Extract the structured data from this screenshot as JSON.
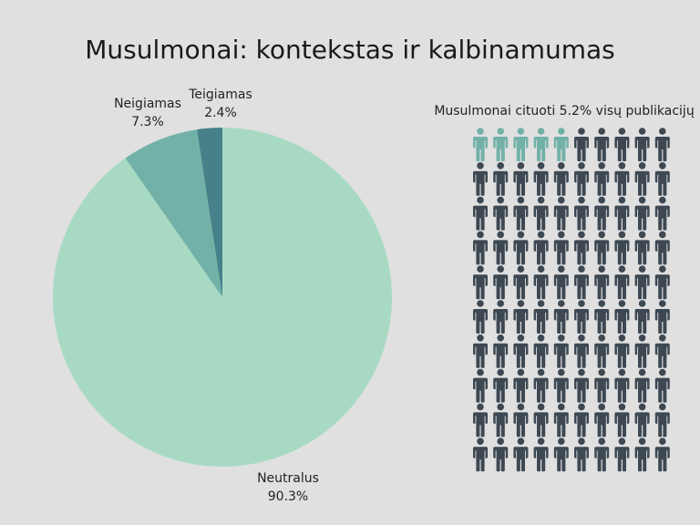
{
  "title": "Musulmonai: kontekstas ir kalbinamumas",
  "chart_data": [
    {
      "type": "pie",
      "slices": [
        {
          "label": "Neutralus",
          "value": 90.3,
          "value_label": "90.3%",
          "color": "#a8dac3"
        },
        {
          "label": "Neigiamas",
          "value": 7.3,
          "value_label": "7.3%",
          "color": "#72b1a7"
        },
        {
          "label": "Teigiamas",
          "value": 2.4,
          "value_label": "2.4%",
          "color": "#468189"
        }
      ]
    },
    {
      "type": "pictogram",
      "caption": "Musulmonai cituoti 5.2% visų publikacijų",
      "total_icons": 100,
      "highlighted_icons": 5,
      "icon": "person-icon",
      "highlight_color": "#72b1a7",
      "base_color": "#3d4852"
    }
  ]
}
